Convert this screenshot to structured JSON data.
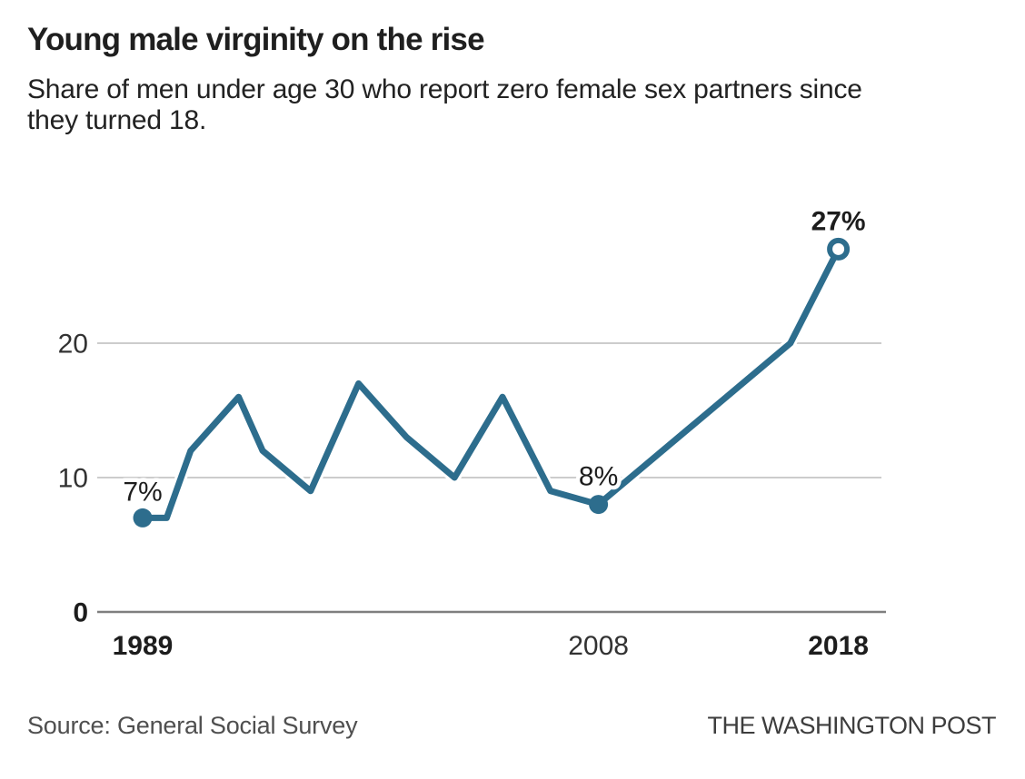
{
  "header": {
    "title": "Young male virginity on the rise",
    "subtitle": "Share of men under age 30 who report zero female sex partners since they turned 18.",
    "subtitle_line1": "Share of men under age 30 who report zero female sex partners since",
    "subtitle_line2": "they turned 18."
  },
  "footer": {
    "source": "Source: General Social Survey",
    "brand": "THE WASHINGTON POST"
  },
  "chart_data": {
    "type": "line",
    "title": "Young male virginity on the rise",
    "subtitle": "Share of men under age 30 who report zero female sex partners since they turned 18.",
    "unit": "percent",
    "xlabel": "",
    "ylabel": "",
    "xlim": [
      1989,
      2018
    ],
    "ylim": [
      0,
      29
    ],
    "grid": "horizontal-y",
    "legend": "none",
    "points": [
      {
        "year": 1989,
        "value": 7
      },
      {
        "year": 1990,
        "value": 7
      },
      {
        "year": 1991,
        "value": 12
      },
      {
        "year": 1993,
        "value": 16
      },
      {
        "year": 1994,
        "value": 12
      },
      {
        "year": 1996,
        "value": 9
      },
      {
        "year": 1998,
        "value": 17
      },
      {
        "year": 2000,
        "value": 13
      },
      {
        "year": 2002,
        "value": 10
      },
      {
        "year": 2004,
        "value": 16
      },
      {
        "year": 2006,
        "value": 9
      },
      {
        "year": 2008,
        "value": 8
      },
      {
        "year": 2016,
        "value": 20
      },
      {
        "year": 2018,
        "value": 27
      }
    ],
    "yticks": [
      {
        "label": "20",
        "value": 20,
        "bold": false
      },
      {
        "label": "10",
        "value": 10,
        "bold": false
      },
      {
        "label": "0",
        "value": 0,
        "bold": true
      }
    ],
    "xticks": [
      {
        "label": "1989",
        "year": 1989,
        "bold": true
      },
      {
        "label": "2008",
        "year": 2008,
        "bold": false
      },
      {
        "label": "2018",
        "year": 2018,
        "bold": true
      }
    ],
    "markers": [
      {
        "year": 1989,
        "value": 7,
        "style": "filled"
      },
      {
        "year": 2008,
        "value": 8,
        "style": "filled"
      },
      {
        "year": 2018,
        "value": 27,
        "style": "open"
      }
    ],
    "annotations": [
      {
        "text": "7%",
        "year": 1989,
        "value": 7,
        "bold": false
      },
      {
        "text": "8%",
        "year": 2008,
        "value": 8,
        "bold": false
      },
      {
        "text": "27%",
        "year": 2018,
        "value": 27,
        "bold": true
      }
    ],
    "colors": {
      "line": "#2d6d8d",
      "grid": "#cccccc",
      "axis": "#7f7f7f",
      "text_dark": "#1d1d1d",
      "text": "#323232"
    }
  }
}
